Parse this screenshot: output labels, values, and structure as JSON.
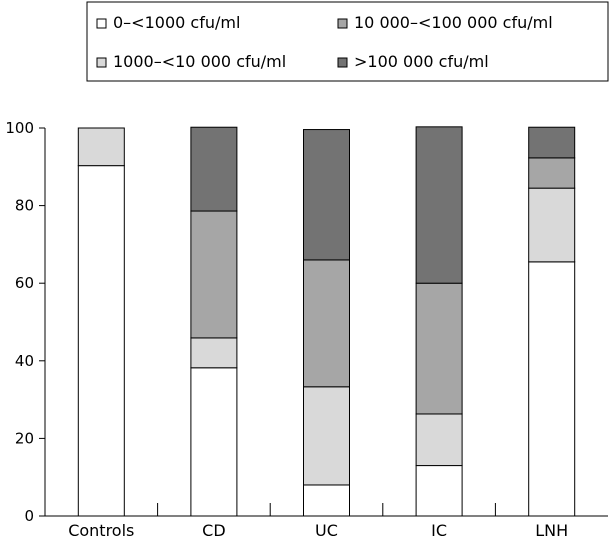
{
  "chart_data": {
    "type": "bar",
    "stacked": true,
    "categories": [
      "Controls",
      "CD",
      "UC",
      "IC",
      "LNH"
    ],
    "series": [
      {
        "name": "0–<1000 cfu/ml",
        "values": [
          90.3,
          38.2,
          8.0,
          13.0,
          65.5
        ],
        "color": "#ffffff"
      },
      {
        "name": "1000–<10 000 cfu/ml",
        "values": [
          9.7,
          7.7,
          25.3,
          13.3,
          19.0
        ],
        "color": "#d9d9d9"
      },
      {
        "name": "10 000–<100 000 cfu/ml",
        "values": [
          0,
          32.7,
          32.7,
          33.7,
          7.8
        ],
        "color": "#a6a6a6"
      },
      {
        "name": ">100 000 cfu/ml",
        "values": [
          0,
          21.6,
          33.6,
          40.3,
          7.9
        ],
        "color": "#737373"
      }
    ],
    "ylim": [
      0,
      100
    ],
    "yticks": [
      "0",
      "20",
      "40",
      "60",
      "80",
      "100"
    ],
    "xlabel": "",
    "ylabel": "",
    "title": "",
    "legend_position": "top",
    "grid": false
  }
}
